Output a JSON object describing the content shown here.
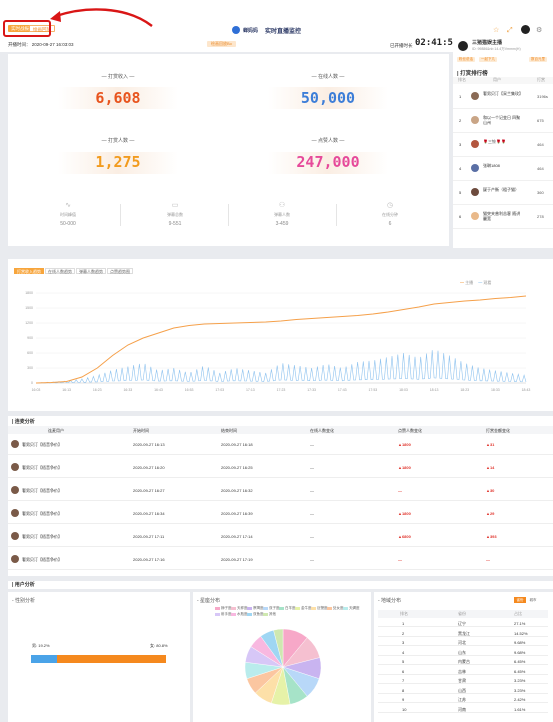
{
  "header": {
    "tab_live": "实时战报",
    "tab_replay": "绘画回放",
    "brand_name": "蝉妈妈",
    "title": "实时直播监控",
    "start_label": "开播时间：",
    "start_time": "2020-09-27 16:03:03",
    "badge": "绘画回放Bo",
    "elapsed_label": "已开播时长",
    "elapsed": "02:41:56"
  },
  "stats": {
    "tip_income_label": "— 打赏收入 —",
    "tip_income": "6,608",
    "online_label": "— 在线人数 —",
    "online": "50,000",
    "tippers_label": "— 打赏人数 —",
    "tippers": "1,275",
    "likes_label": "— 点赞人数 —",
    "likes": "247,000",
    "sub": [
      {
        "label": "时间峰值",
        "value": "50-000"
      },
      {
        "label": "弹幕总数",
        "value": "9-551"
      },
      {
        "label": "弹幕人数",
        "value": "3-459"
      },
      {
        "label": "在线分钟",
        "value": "6"
      }
    ],
    "colors": {
      "tip_income": "#e8541e",
      "online": "#3d7ed8",
      "tippers": "#f29b1e",
      "likes": "#e64a9a"
    }
  },
  "ranking": {
    "anchor_name": "三猪猫娱主播",
    "anchor_sub": "ID: 99886&nb  14.4万Vmmm(H)",
    "tags": [
      "粉丝说话",
      "一起下几",
      "数百元里"
    ],
    "title": "| 打赏排行榜",
    "cols": [
      "排名",
      "用户",
      "打赏"
    ],
    "items": [
      {
        "rank": "1",
        "name": "奢男贝汀【采兰集玫】",
        "amount": "3196s"
      },
      {
        "rank": "2",
        "name": "和以一个记变日 四聚山州",
        "amount": "675"
      },
      {
        "rank": "3",
        "name": "🌹三铃🌹🌹",
        "amount": "464"
      },
      {
        "rank": "4",
        "name": "张琳1808",
        "amount": "464"
      },
      {
        "rank": "5",
        "name": "疑于产衡（粗子猫）",
        "amount": "360"
      },
      {
        "rank": "6",
        "name": "猫突夹普利苦客 随讲麗宽",
        "amount": "278"
      }
    ]
  },
  "trend": {
    "tabs": [
      "打赏收入趋势",
      "在线人数趋势",
      "弹幕人数趋势",
      "点赞趋势图"
    ],
    "legend": [
      "主播",
      "观看"
    ],
    "colors": {
      "line": "#f5a04a",
      "spikes": "#8fc3ef"
    },
    "chart_data": {
      "type": "line",
      "x": [
        "16:03",
        "16:08",
        "16:13",
        "16:18",
        "16:23",
        "16:28",
        "16:33",
        "16:38",
        "16:43",
        "16:48",
        "16:53",
        "16:58",
        "17:03",
        "17:08",
        "17:13",
        "17:18",
        "17:23",
        "17:28",
        "17:33",
        "17:38",
        "17:43",
        "17:48",
        "17:53",
        "17:58",
        "18:03",
        "18:08",
        "18:13",
        "18:18",
        "18:23",
        "18:28",
        "18:33",
        "18:38",
        "18:43"
      ],
      "series": [
        {
          "name": "主播",
          "values": [
            0,
            10,
            30,
            120,
            300,
            550,
            760,
            900,
            1000,
            1100,
            1150,
            1180,
            1190,
            1200,
            1210,
            1220,
            1240,
            1270,
            1290,
            1310,
            1330,
            1350,
            1380,
            1420,
            1470,
            1520,
            1580,
            1610,
            1640,
            1660,
            1690,
            1710,
            1740
          ]
        },
        {
          "name": "观看",
          "values": [
            5,
            20,
            40,
            80,
            150,
            260,
            330,
            400,
            250,
            300,
            200,
            350,
            200,
            300,
            250,
            200,
            400,
            350,
            300,
            380,
            300,
            420,
            450,
            520,
            600,
            500,
            680,
            550,
            400,
            300,
            250,
            200,
            150
          ]
        }
      ],
      "ylim": [
        0,
        1800
      ]
    }
  },
  "table": {
    "title": "| 连麦分析",
    "headers": [
      "连麦用户",
      "开始时间",
      "结束时间",
      "在线人数变化",
      "点赞人数变化",
      "打赏金额变化"
    ],
    "rows": [
      {
        "user": "奢男贝汀【梧音争价】",
        "start": "2020-09-27 16:13",
        "end": "2020-09-27 16:18",
        "online": "—",
        "likes": "▲1800",
        "tips": "▲31"
      },
      {
        "user": "奢男贝汀【梧音争价】",
        "start": "2020-09-27 16:20",
        "end": "2020-09-27 16:25",
        "online": "—",
        "likes": "▲1800",
        "tips": "▲14"
      },
      {
        "user": "奢男贝汀【梧音争价】",
        "start": "2020-09-27 16:27",
        "end": "2020-09-27 16:32",
        "online": "—",
        "likes": "—",
        "tips": "▲30"
      },
      {
        "user": "奢男贝汀【梧音争价】",
        "start": "2020-09-27 16:34",
        "end": "2020-09-27 16:39",
        "online": "—",
        "likes": "▲1800",
        "tips": "▲29"
      },
      {
        "user": "奢男贝汀【梧音争价】",
        "start": "2020-09-27 17:11",
        "end": "2020-09-27 17:14",
        "online": "—",
        "likes": "▲6800",
        "tips": "▲393"
      },
      {
        "user": "奢男贝汀【梧音争价】",
        "start": "2020-09-27 17:16",
        "end": "2020-09-27 17:19",
        "online": "—",
        "likes": "—",
        "tips": "—"
      }
    ]
  },
  "user_analysis": {
    "title": "| 用户分析",
    "gender_title": "- 性别分析",
    "male_label": "男: 19.2%",
    "female_label": "女: 80.8%",
    "male_share": 19.2,
    "gender_colors": {
      "male": "#4aa3e8",
      "female": "#f5891e"
    },
    "age_title": "- 星座分布",
    "age_legend": [
      "狮子座",
      "天秤座",
      "摩羯座",
      "双子座",
      "白羊座",
      "金牛座",
      "巨蟹座",
      "处女座",
      "天蝎座",
      "射手座",
      "水瓶座",
      "双鱼座",
      "其他"
    ],
    "pie_colors": [
      "#f7a8c8",
      "#f5c0d0",
      "#c9b4f0",
      "#b8d8f8",
      "#a6e3c8",
      "#e6f2a8",
      "#fde0a8",
      "#fbc6a0",
      "#b9ecec",
      "#d7c7f7",
      "#f8b8e0",
      "#9fd6f3",
      "#cfe8b0"
    ],
    "pie_values": [
      11,
      10,
      9,
      9,
      8,
      8,
      8,
      7,
      7,
      7,
      6,
      6,
      4
    ],
    "geo_title": "- 地域分布",
    "geo_toggle": [
      "省份",
      "城市"
    ],
    "geo_cols": [
      "排名",
      "省份",
      "占比"
    ],
    "geo_rows": [
      {
        "rank": "1",
        "name": "辽宁",
        "pct": "27.1%"
      },
      {
        "rank": "2",
        "name": "黑龙江",
        "pct": "14.52%"
      },
      {
        "rank": "3",
        "name": "河北",
        "pct": "9.68%"
      },
      {
        "rank": "4",
        "name": "山东",
        "pct": "9.68%"
      },
      {
        "rank": "5",
        "name": "内蒙古",
        "pct": "6.45%"
      },
      {
        "rank": "6",
        "name": "吉林",
        "pct": "6.45%"
      },
      {
        "rank": "7",
        "name": "甘肃",
        "pct": "3.23%"
      },
      {
        "rank": "8",
        "name": "山西",
        "pct": "3.23%"
      },
      {
        "rank": "9",
        "name": "江苏",
        "pct": "2.42%"
      },
      {
        "rank": "10",
        "name": "河南",
        "pct": "1.61%"
      }
    ]
  }
}
